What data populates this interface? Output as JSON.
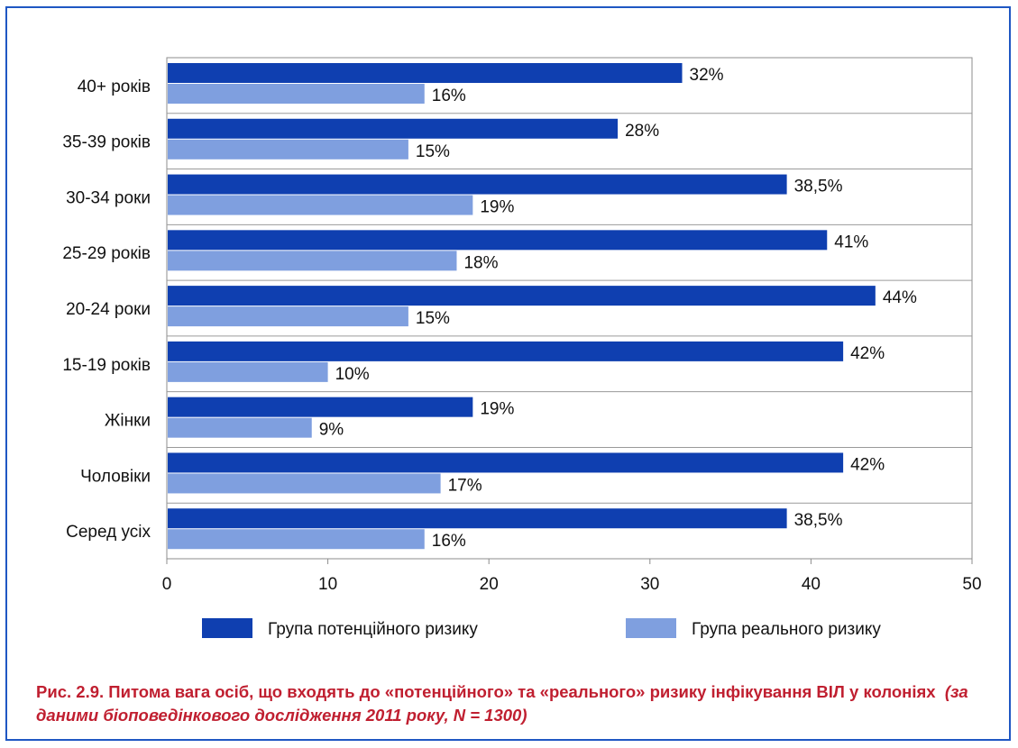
{
  "chart_data": {
    "type": "bar",
    "orientation": "horizontal",
    "categories": [
      "40+ років",
      "35-39 років",
      "30-34 роки",
      "25-29 років",
      "20-24 роки",
      "15-19 років",
      "Жінки",
      "Чоловіки",
      "Серед усіх"
    ],
    "series": [
      {
        "name": "Група потенційного ризику",
        "color": "#0f3fb0",
        "values": [
          32,
          28,
          38.5,
          41,
          44,
          42,
          19,
          42,
          38.5
        ],
        "labels": [
          "32%",
          "28%",
          "38,5%",
          "41%",
          "44%",
          "42%",
          "19%",
          "42%",
          "38,5%"
        ]
      },
      {
        "name": "Група реального ризику",
        "color": "#7f9fdf",
        "values": [
          16,
          15,
          19,
          18,
          15,
          10,
          9,
          17,
          16
        ],
        "labels": [
          "16%",
          "15%",
          "19%",
          "18%",
          "15%",
          "10%",
          "9%",
          "17%",
          "16%"
        ]
      }
    ],
    "xlim": [
      0,
      50
    ],
    "xticks": [
      0,
      10,
      20,
      30,
      40,
      50
    ],
    "grid": "horizontal separators",
    "legend_position": "bottom"
  },
  "caption": {
    "main": "Рис. 2.9. Питома вага осіб, що входять до «потенційного» та «реального» ризику інфікування ВІЛ у колоніях",
    "sub": "(за даними біоповедінкового дослідження 2011 року, N = 1300)"
  },
  "colors": {
    "border": "#1f57c3",
    "caption": "#c01f30"
  }
}
